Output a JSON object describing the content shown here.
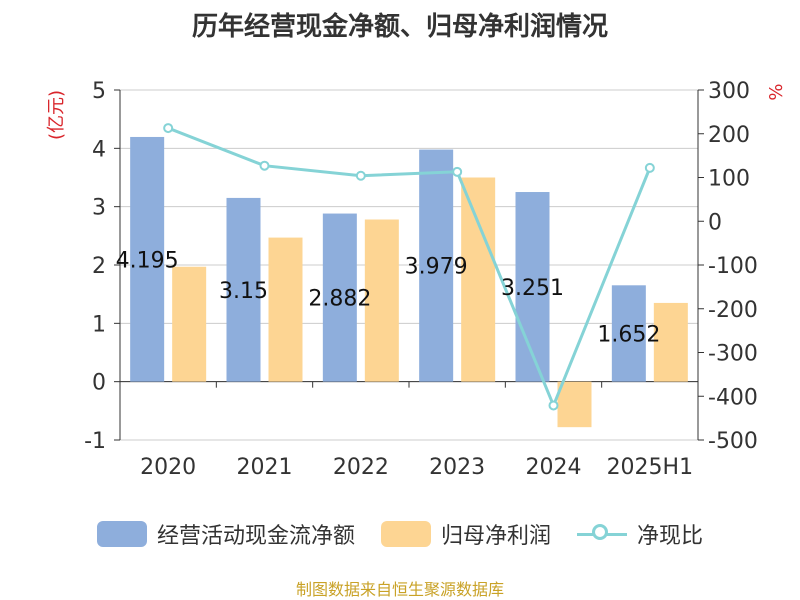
{
  "chart_data": {
    "type": "bar",
    "title": "历年经营现金净额、归母净利润情况",
    "categories": [
      "2020",
      "2021",
      "2022",
      "2023",
      "2024",
      "2025H1"
    ],
    "series": [
      {
        "name": "经营活动现金流净额",
        "type": "bar",
        "axis": "left",
        "color": "#8eaedc",
        "values": [
          4.195,
          3.15,
          2.882,
          3.979,
          3.251,
          1.652
        ],
        "labels": [
          "4.195",
          "3.15",
          "2.882",
          "3.979",
          "3.251",
          "1.652"
        ]
      },
      {
        "name": "归母净利润",
        "type": "bar",
        "axis": "left",
        "color": "#fdd593",
        "values": [
          1.97,
          2.47,
          2.78,
          3.5,
          -0.78,
          1.35
        ]
      },
      {
        "name": "净现比",
        "type": "line",
        "axis": "right",
        "color": "#85d3d6",
        "values": [
          213,
          127,
          104,
          113,
          -421,
          122
        ]
      }
    ],
    "y_left": {
      "label": "(亿元)",
      "min": -1,
      "max": 5,
      "ticks": [
        -1,
        0,
        1,
        2,
        3,
        4,
        5
      ]
    },
    "y_right": {
      "label": "%",
      "min": -500,
      "max": 300,
      "ticks": [
        -500,
        -400,
        -300,
        -200,
        -100,
        0,
        100,
        200,
        300
      ]
    },
    "grid": true,
    "legend_position": "bottom"
  },
  "footer": {
    "source": "制图数据来自恒生聚源数据库"
  }
}
